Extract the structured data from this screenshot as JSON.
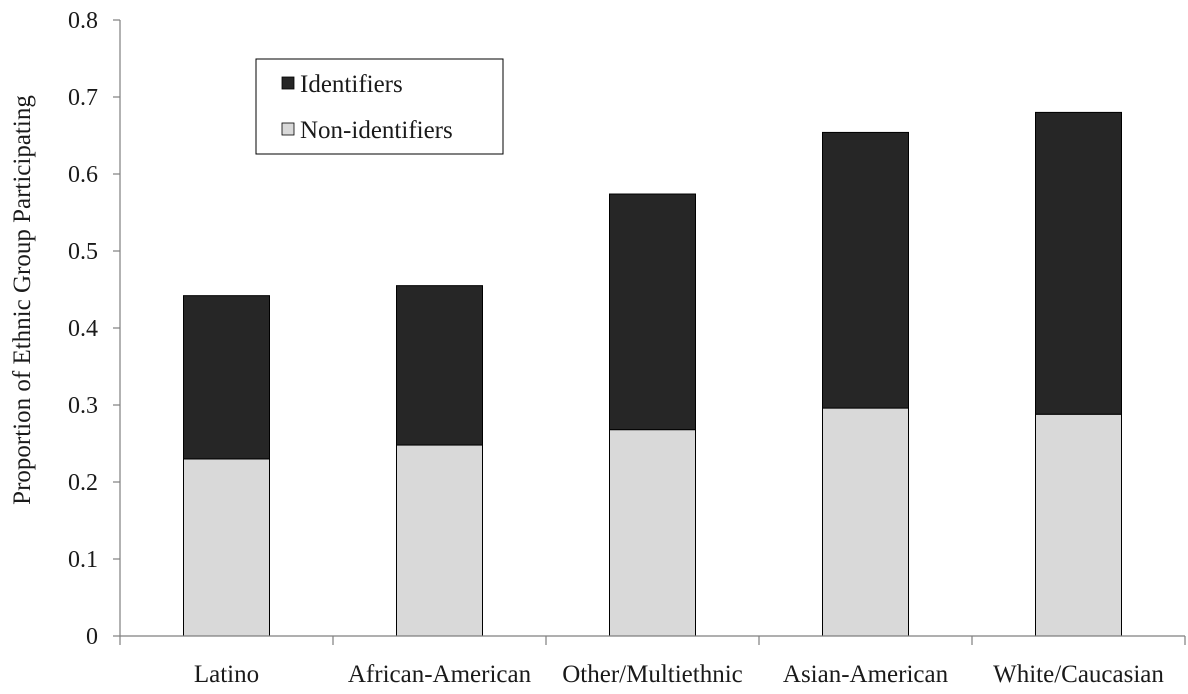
{
  "chart_data": {
    "type": "bar",
    "stacked": true,
    "title": "",
    "xlabel": "",
    "ylabel": "Proportion of Ethnic Group Participating",
    "ylim": [
      0,
      0.8
    ],
    "yticks": [
      0,
      0.1,
      0.2,
      0.3,
      0.4,
      0.5,
      0.6,
      0.7,
      0.8
    ],
    "ytick_labels": [
      "0",
      "0.1",
      "0.2",
      "0.3",
      "0.4",
      "0.5",
      "0.6",
      "0.7",
      "0.8"
    ],
    "categories": [
      "Latino",
      "African-American",
      "Other/Multiethnic",
      "Asian-American",
      "White/Caucasian"
    ],
    "series": [
      {
        "name": "Non-identifiers",
        "values": [
          0.23,
          0.248,
          0.268,
          0.296,
          0.288
        ],
        "color": "#d9d9d9"
      },
      {
        "name": "Identifiers",
        "values": [
          0.212,
          0.207,
          0.306,
          0.358,
          0.392
        ],
        "color": "#262626"
      }
    ],
    "legend": {
      "position": "top-left",
      "items": [
        "Identifiers",
        "Non-identifiers"
      ]
    },
    "grid": false
  }
}
